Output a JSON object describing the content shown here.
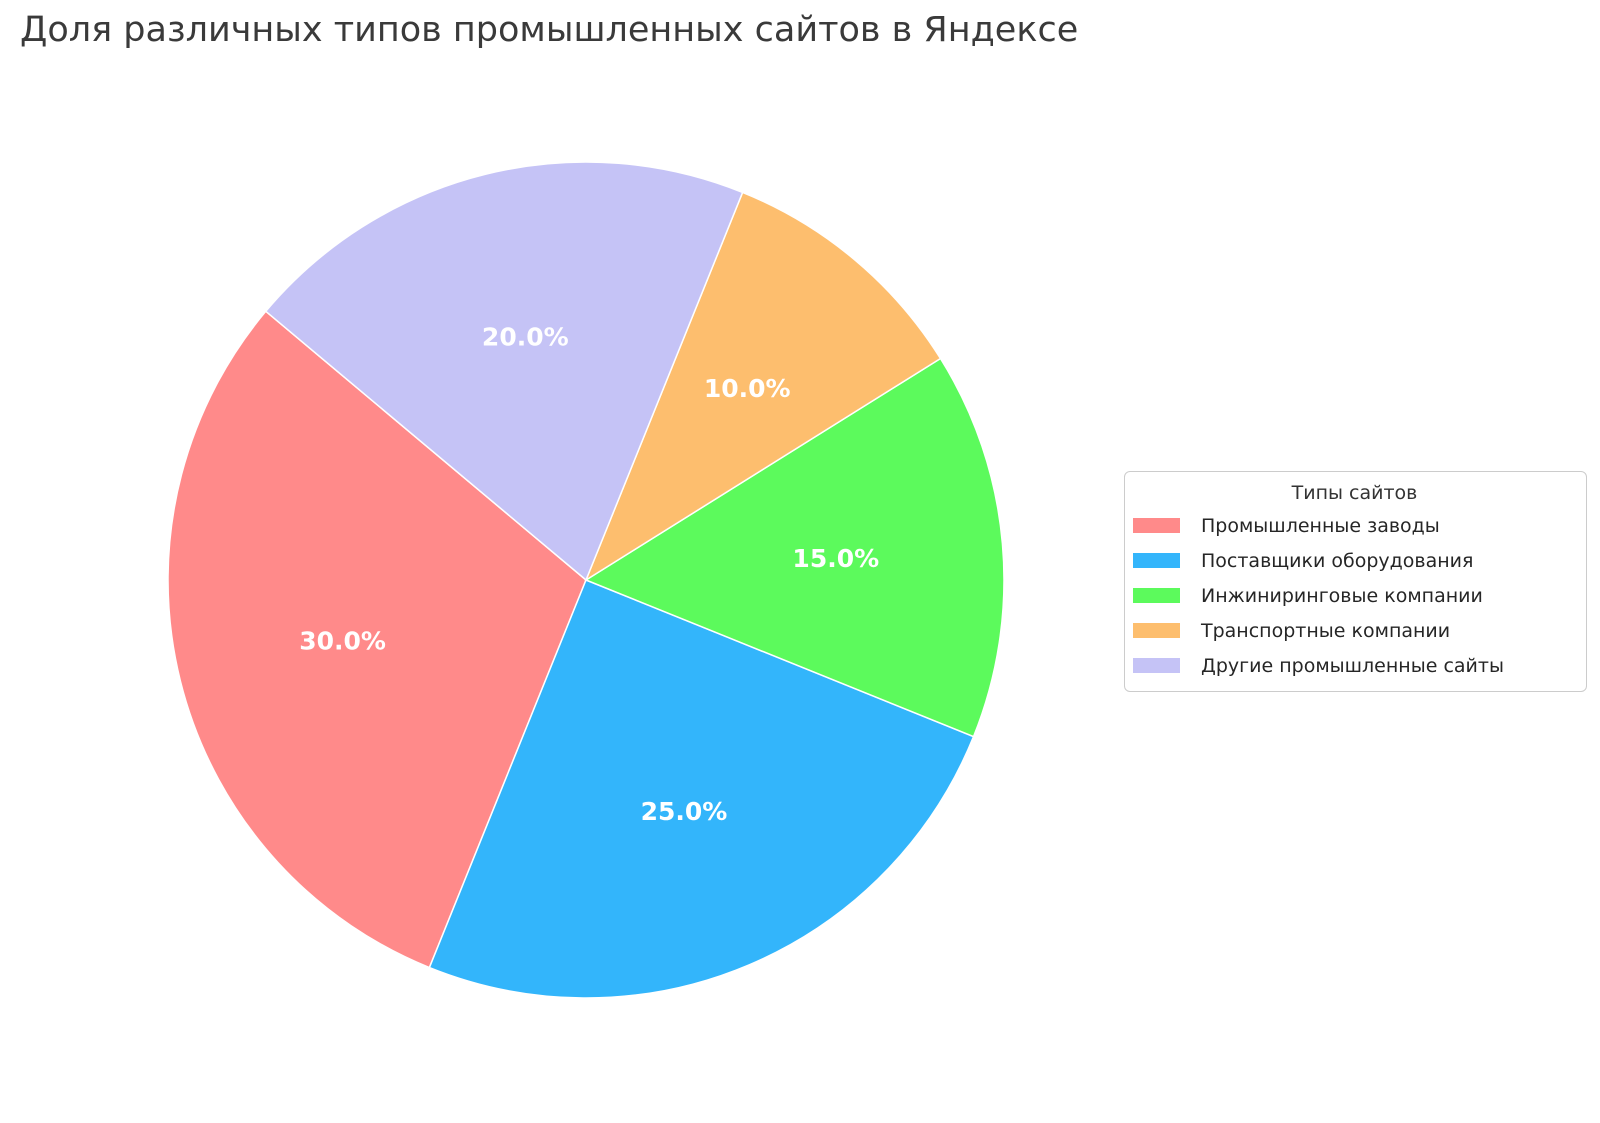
{
  "title": "Доля различных типов промышленных сайтов в Яндексе",
  "legend": {
    "title": "Типы сайтов"
  },
  "chart_data": {
    "type": "pie",
    "title": "Доля различных типов промышленных сайтов в Яндексе",
    "labels": [
      "Промышленные заводы",
      "Поставщики оборудования",
      "Инжиниринговые компании",
      "Транспортные компании",
      "Другие промышленные сайты"
    ],
    "values": [
      30,
      25,
      15,
      10,
      20
    ],
    "pct_labels": [
      "30.0%",
      "25.0%",
      "15.0%",
      "10.0%",
      "20.0%"
    ],
    "colors": [
      "#ff8a8a",
      "#33b5fb",
      "#5cfa5c",
      "#fdbe6e",
      "#c5c3f6"
    ],
    "start_angle": 140,
    "direction": "counterclockwise",
    "pct_distance": 0.6,
    "legend_title": "Типы сайтов",
    "legend_position": "right"
  }
}
